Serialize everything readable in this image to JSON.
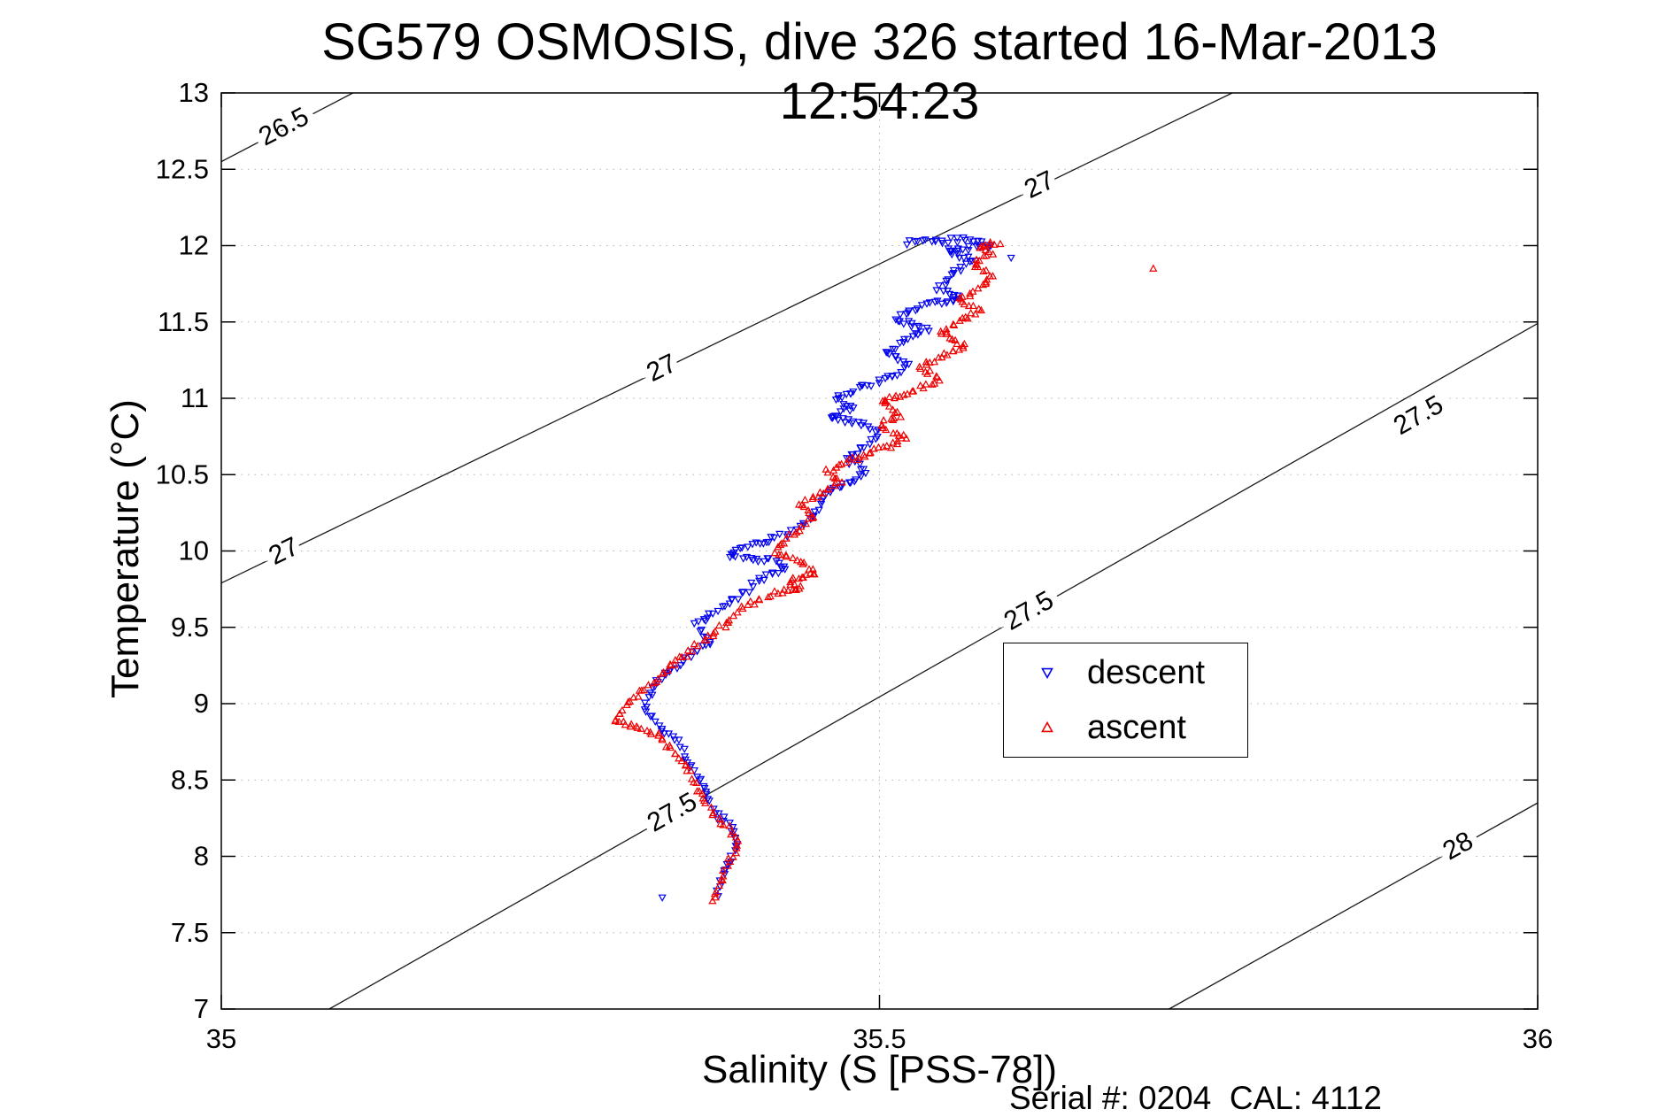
{
  "chart_data": {
    "type": "scatter",
    "title": "SG579 OSMOSIS, dive 326 started 16-Mar-2013 12:54:23",
    "xlabel": "Salinity (S [PSS-78])",
    "ylabel": "Temperature (°C)",
    "annotation": "Serial #: 0204  CAL: 4112",
    "xlim": [
      35,
      36
    ],
    "ylim": [
      7,
      13
    ],
    "xticks": [
      35,
      35.5,
      36
    ],
    "yticks": [
      7,
      7.5,
      8,
      8.5,
      9,
      9.5,
      10,
      10.5,
      11,
      11.5,
      12,
      12.5,
      13
    ],
    "grid": true,
    "legend": {
      "position": "middle-right",
      "entries": [
        {
          "label": "descent",
          "marker": "triangle-down",
          "color": "#0000EE"
        },
        {
          "label": "ascent",
          "marker": "triangle-up",
          "color": "#EE0000"
        }
      ]
    },
    "isopycnals": {
      "color": "#1a1a1a",
      "lines": [
        {
          "level": "26.5",
          "line": [
            [
              35.0,
              12.55
            ],
            [
              35.1,
              13.0
            ]
          ],
          "labels": [
            [
              35.048,
              12.77
            ]
          ]
        },
        {
          "level": "27",
          "line": [
            [
              35.0,
              9.79
            ],
            [
              35.768,
              13.0
            ]
          ],
          "labels": [
            [
              35.048,
              9.99
            ],
            [
              35.335,
              11.19
            ],
            [
              35.622,
              12.39
            ]
          ]
        },
        {
          "level": "27.5",
          "line": [
            [
              35.082,
              7.0
            ],
            [
              36.0,
              11.49
            ]
          ],
          "labels": [
            [
              35.343,
              8.28
            ],
            [
              35.614,
              9.6
            ],
            [
              35.91,
              10.88
            ]
          ]
        },
        {
          "level": "28",
          "line": [
            [
              35.72,
              7.0
            ],
            [
              36.0,
              8.35
            ]
          ],
          "labels": [
            [
              35.94,
              8.06
            ]
          ]
        }
      ]
    },
    "series": [
      {
        "name": "descent",
        "marker": "triangle-down",
        "color": "#0000EE",
        "path": [
          [
            35.52,
            12.02
          ],
          [
            35.565,
            12.04
          ],
          [
            35.585,
            12.0
          ],
          [
            35.55,
            11.97
          ],
          [
            35.572,
            11.9
          ],
          [
            35.556,
            11.82
          ],
          [
            35.545,
            11.72
          ],
          [
            35.562,
            11.65
          ],
          [
            35.53,
            11.6
          ],
          [
            35.512,
            11.52
          ],
          [
            35.536,
            11.45
          ],
          [
            35.52,
            11.38
          ],
          [
            35.505,
            11.3
          ],
          [
            35.522,
            11.22
          ],
          [
            35.51,
            11.14
          ],
          [
            35.49,
            11.08
          ],
          [
            35.466,
            11.0
          ],
          [
            35.48,
            10.94
          ],
          [
            35.462,
            10.88
          ],
          [
            35.492,
            10.82
          ],
          [
            35.5,
            10.76
          ],
          [
            35.488,
            10.68
          ],
          [
            35.475,
            10.6
          ],
          [
            35.49,
            10.52
          ],
          [
            35.476,
            10.45
          ],
          [
            35.462,
            10.38
          ],
          [
            35.455,
            10.3
          ],
          [
            35.45,
            10.22
          ],
          [
            35.44,
            10.15
          ],
          [
            35.42,
            10.08
          ],
          [
            35.398,
            10.02
          ],
          [
            35.386,
            9.97
          ],
          [
            35.422,
            9.93
          ],
          [
            35.43,
            9.88
          ],
          [
            35.41,
            9.82
          ],
          [
            35.4,
            9.75
          ],
          [
            35.39,
            9.68
          ],
          [
            35.376,
            9.6
          ],
          [
            35.36,
            9.52
          ],
          [
            35.366,
            9.45
          ],
          [
            35.372,
            9.4
          ],
          [
            35.356,
            9.32
          ],
          [
            35.346,
            9.25
          ],
          [
            35.33,
            9.15
          ],
          [
            35.326,
            9.05
          ],
          [
            35.32,
            8.97
          ],
          [
            35.33,
            8.9
          ],
          [
            35.336,
            8.82
          ],
          [
            35.346,
            8.75
          ],
          [
            35.352,
            8.68
          ],
          [
            35.356,
            8.6
          ],
          [
            35.362,
            8.52
          ],
          [
            35.366,
            8.45
          ],
          [
            35.372,
            8.36
          ],
          [
            35.376,
            8.28
          ],
          [
            35.386,
            8.2
          ],
          [
            35.392,
            8.12
          ],
          [
            35.392,
            8.05
          ],
          [
            35.386,
            7.97
          ],
          [
            35.381,
            7.9
          ],
          [
            35.38,
            7.82
          ],
          [
            35.376,
            7.74
          ]
        ],
        "extra_points": [
          [
            35.6,
            11.92
          ],
          [
            35.335,
            7.73
          ]
        ]
      },
      {
        "name": "ascent",
        "marker": "triangle-up",
        "color": "#EE0000",
        "path": [
          [
            35.592,
            12.02
          ],
          [
            35.576,
            12.0
          ],
          [
            35.586,
            11.95
          ],
          [
            35.57,
            11.88
          ],
          [
            35.586,
            11.8
          ],
          [
            35.576,
            11.72
          ],
          [
            35.56,
            11.65
          ],
          [
            35.576,
            11.58
          ],
          [
            35.56,
            11.5
          ],
          [
            35.546,
            11.42
          ],
          [
            35.566,
            11.35
          ],
          [
            35.55,
            11.28
          ],
          [
            35.53,
            11.2
          ],
          [
            35.546,
            11.12
          ],
          [
            35.526,
            11.05
          ],
          [
            35.5,
            10.98
          ],
          [
            35.516,
            10.9
          ],
          [
            35.5,
            10.82
          ],
          [
            35.52,
            10.75
          ],
          [
            35.506,
            10.68
          ],
          [
            35.48,
            10.6
          ],
          [
            35.46,
            10.52
          ],
          [
            35.47,
            10.45
          ],
          [
            35.456,
            10.38
          ],
          [
            35.44,
            10.3
          ],
          [
            35.45,
            10.22
          ],
          [
            35.44,
            10.15
          ],
          [
            35.43,
            10.08
          ],
          [
            35.42,
            10.0
          ],
          [
            35.432,
            9.95
          ],
          [
            35.446,
            9.9
          ],
          [
            35.452,
            9.85
          ],
          [
            35.43,
            9.8
          ],
          [
            35.442,
            9.76
          ],
          [
            35.42,
            9.72
          ],
          [
            35.4,
            9.65
          ],
          [
            35.39,
            9.58
          ],
          [
            35.38,
            9.5
          ],
          [
            35.368,
            9.42
          ],
          [
            35.354,
            9.33
          ],
          [
            35.34,
            9.25
          ],
          [
            35.33,
            9.15
          ],
          [
            35.314,
            9.05
          ],
          [
            35.304,
            8.95
          ],
          [
            35.298,
            8.9
          ],
          [
            35.314,
            8.85
          ],
          [
            35.33,
            8.8
          ],
          [
            35.34,
            8.72
          ],
          [
            35.35,
            8.64
          ],
          [
            35.356,
            8.56
          ],
          [
            35.36,
            8.48
          ],
          [
            35.364,
            8.4
          ],
          [
            35.37,
            8.32
          ],
          [
            35.378,
            8.24
          ],
          [
            35.388,
            8.16
          ],
          [
            35.392,
            8.08
          ],
          [
            35.388,
            8.0
          ],
          [
            35.383,
            7.92
          ],
          [
            35.38,
            7.84
          ],
          [
            35.377,
            7.76
          ],
          [
            35.373,
            7.7
          ]
        ],
        "extra_points": [
          [
            35.708,
            11.85
          ]
        ]
      }
    ]
  }
}
